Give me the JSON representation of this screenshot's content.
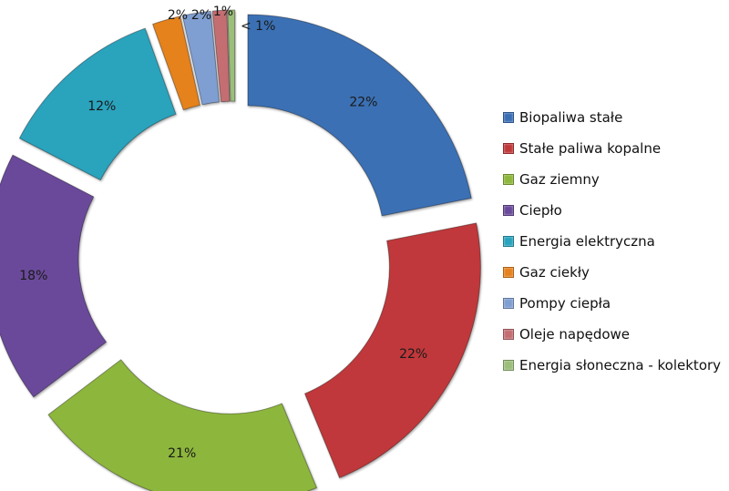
{
  "chart_data": {
    "type": "pie",
    "subtype": "exploded-doughnut",
    "title": "",
    "categories": [
      "Biopaliwa stałe",
      "Stałe paliwa kopalne",
      "Gaz ziemny",
      "Ciepło",
      "Energia elektryczna",
      "Gaz ciekły",
      "Pompy ciepła",
      "Oleje napędowe",
      "Energia słoneczna - kolektory"
    ],
    "values": [
      22,
      22,
      21,
      18,
      12,
      2,
      2,
      1,
      0.5
    ],
    "labels": [
      "22%",
      "22%",
      "21%",
      "18%",
      "12%",
      "2%",
      "2%",
      "1%",
      "< 1%"
    ],
    "colors": [
      "#3b6fb4",
      "#c0393a",
      "#8db63c",
      "#6a4a9a",
      "#2aa3bd",
      "#e5821f",
      "#7f9ed1",
      "#c46e72",
      "#9bbf7a"
    ],
    "legend_position": "right"
  },
  "legend": {
    "items": [
      {
        "label": "Biopaliwa stałe",
        "color": "#3b6fb4"
      },
      {
        "label": "Stałe paliwa kopalne",
        "color": "#c0393a"
      },
      {
        "label": "Gaz ziemny",
        "color": "#8db63c"
      },
      {
        "label": "Ciepło",
        "color": "#6a4a9a"
      },
      {
        "label": "Energia elektryczna",
        "color": "#2aa3bd"
      },
      {
        "label": "Gaz ciekły",
        "color": "#e5821f"
      },
      {
        "label": "Pompy ciepła",
        "color": "#7f9ed1"
      },
      {
        "label": "Oleje napędowe",
        "color": "#c46e72"
      },
      {
        "label": "Energia słoneczna - kolektory",
        "color": "#9bbf7a"
      }
    ]
  }
}
